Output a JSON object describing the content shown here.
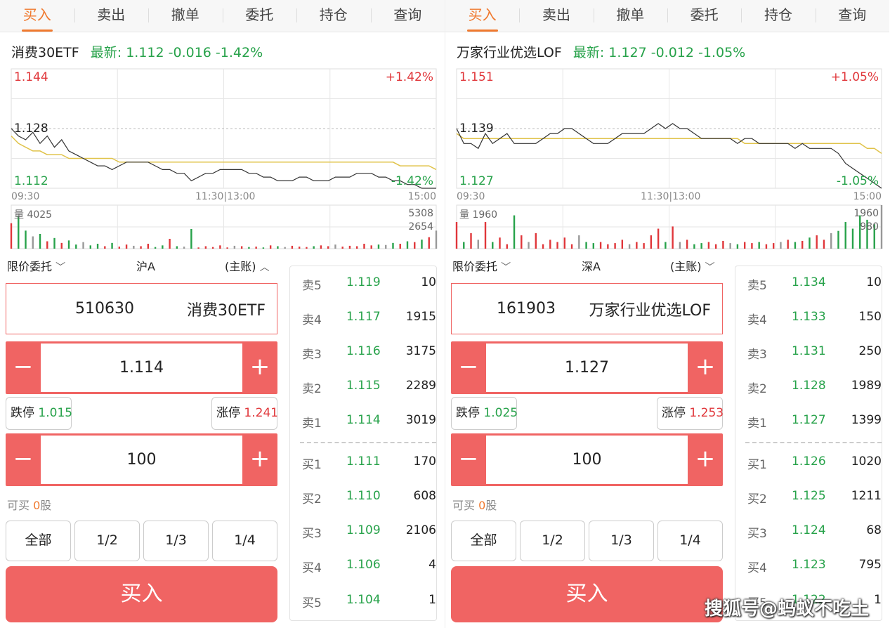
{
  "tabs": [
    "买入",
    "卖出",
    "撤单",
    "委托",
    "持仓",
    "查询"
  ],
  "panels": [
    {
      "name": "消费30ETF",
      "latest": "最新: 1.112 -0.016 -1.42%",
      "chart": {
        "high": "1.144",
        "mid": "1.128",
        "low": "1.112",
        "pct_up": "+1.42%",
        "pct_down": "-1.42%",
        "time_start": "09:30",
        "time_mid": "11:30|13:00",
        "time_end": "15:00",
        "vol_label": "量 4025",
        "vol_max": "5308",
        "vol_half": "2654",
        "price_line": [
          1.128,
          1.126,
          1.125,
          1.127,
          1.124,
          1.126,
          1.123,
          1.125,
          1.122,
          1.121,
          1.12,
          1.119,
          1.118,
          1.118,
          1.117,
          1.118,
          1.119,
          1.119,
          1.119,
          1.119,
          1.118,
          1.117,
          1.117,
          1.116,
          1.116,
          1.114,
          1.115,
          1.116,
          1.116,
          1.117,
          1.117,
          1.117,
          1.117,
          1.116,
          1.116,
          1.115,
          1.115,
          1.114,
          1.114,
          1.114,
          1.115,
          1.115,
          1.114,
          1.114,
          1.114,
          1.115,
          1.115,
          1.115,
          1.116,
          1.116,
          1.116,
          1.115,
          1.115,
          1.114,
          1.114,
          1.113,
          1.113,
          1.112,
          1.112,
          1.112
        ],
        "avg_line": [
          1.126,
          1.124,
          1.123,
          1.122,
          1.122,
          1.121,
          1.121,
          1.121,
          1.12,
          1.12,
          1.12,
          1.12,
          1.12,
          1.12,
          1.12,
          1.119,
          1.119,
          1.119,
          1.119,
          1.119,
          1.119,
          1.119,
          1.119,
          1.119,
          1.119,
          1.119,
          1.119,
          1.119,
          1.119,
          1.119,
          1.119,
          1.119,
          1.119,
          1.119,
          1.119,
          1.119,
          1.119,
          1.119,
          1.119,
          1.119,
          1.119,
          1.119,
          1.119,
          1.119,
          1.119,
          1.119,
          1.119,
          1.119,
          1.119,
          1.119,
          1.119,
          1.119,
          1.119,
          1.119,
          1.118,
          1.118,
          1.118,
          1.118,
          1.118,
          1.117
        ],
        "volume": [
          3100,
          4025,
          2200,
          1500,
          1800,
          900,
          1300,
          700,
          1000,
          500,
          800,
          400,
          600,
          300,
          700,
          250,
          500,
          350,
          300,
          600,
          200,
          400,
          1200,
          300,
          250,
          2400,
          150,
          300,
          200,
          400,
          150,
          350,
          300,
          200,
          250,
          150,
          400,
          300,
          200,
          350,
          250,
          200,
          300,
          400,
          300,
          500,
          250,
          350,
          300,
          600,
          400,
          500,
          450,
          700,
          600,
          900,
          800,
          1100,
          1400,
          2200
        ]
      },
      "order_type": "限价委托",
      "market": "沪A",
      "account": "(主账)",
      "code": "510630",
      "stock_name": "消费30ETF",
      "price": "1.114",
      "limit_down_label": "跌停",
      "limit_down": "1.015",
      "limit_up_label": "涨停",
      "limit_up": "1.241",
      "qty": "100",
      "can_buy_label": "可买",
      "can_buy_num": "0",
      "can_buy_unit": "股",
      "ratios": [
        "全部",
        "1/2",
        "1/3",
        "1/4"
      ],
      "buy_label": "买入",
      "asks": [
        {
          "label": "卖5",
          "price": "1.119",
          "vol": "10"
        },
        {
          "label": "卖4",
          "price": "1.117",
          "vol": "1915"
        },
        {
          "label": "卖3",
          "price": "1.116",
          "vol": "3175"
        },
        {
          "label": "卖2",
          "price": "1.115",
          "vol": "2289"
        },
        {
          "label": "卖1",
          "price": "1.114",
          "vol": "3019"
        }
      ],
      "bids": [
        {
          "label": "买1",
          "price": "1.111",
          "vol": "170"
        },
        {
          "label": "买2",
          "price": "1.110",
          "vol": "608"
        },
        {
          "label": "买3",
          "price": "1.109",
          "vol": "2106"
        },
        {
          "label": "买4",
          "price": "1.106",
          "vol": "4"
        },
        {
          "label": "买5",
          "price": "1.104",
          "vol": "1"
        }
      ]
    },
    {
      "name": "万家行业优选LOF",
      "latest": "最新: 1.127 -0.012 -1.05%",
      "chart": {
        "high": "1.151",
        "mid": "1.139",
        "low": "1.127",
        "pct_up": "+1.05%",
        "pct_down": "-1.05%",
        "time_start": "09:30",
        "time_mid": "11:30|13:00",
        "time_end": "15:00",
        "vol_label": "量 1960",
        "vol_max": "1960",
        "vol_half": "980",
        "price_line": [
          1.139,
          1.136,
          1.136,
          1.135,
          1.138,
          1.136,
          1.137,
          1.138,
          1.136,
          1.136,
          1.136,
          1.136,
          1.137,
          1.138,
          1.138,
          1.139,
          1.139,
          1.138,
          1.137,
          1.136,
          1.136,
          1.136,
          1.137,
          1.138,
          1.138,
          1.138,
          1.138,
          1.139,
          1.14,
          1.139,
          1.14,
          1.139,
          1.139,
          1.138,
          1.137,
          1.137,
          1.137,
          1.137,
          1.137,
          1.136,
          1.137,
          1.137,
          1.136,
          1.136,
          1.136,
          1.136,
          1.136,
          1.135,
          1.136,
          1.135,
          1.135,
          1.135,
          1.135,
          1.134,
          1.132,
          1.131,
          1.13,
          1.129,
          1.128,
          1.127
        ],
        "avg_line": [
          1.138,
          1.137,
          1.137,
          1.137,
          1.137,
          1.137,
          1.137,
          1.137,
          1.137,
          1.137,
          1.137,
          1.137,
          1.137,
          1.137,
          1.137,
          1.137,
          1.137,
          1.137,
          1.137,
          1.137,
          1.137,
          1.137,
          1.137,
          1.137,
          1.137,
          1.137,
          1.137,
          1.137,
          1.137,
          1.137,
          1.137,
          1.137,
          1.137,
          1.137,
          1.137,
          1.137,
          1.137,
          1.137,
          1.137,
          1.137,
          1.136,
          1.136,
          1.136,
          1.136,
          1.136,
          1.136,
          1.136,
          1.136,
          1.136,
          1.136,
          1.136,
          1.136,
          1.136,
          1.136,
          1.136,
          1.136,
          1.136,
          1.135,
          1.135,
          1.134
        ],
        "volume": [
          1200,
          300,
          700,
          400,
          1200,
          300,
          500,
          200,
          1500,
          600,
          300,
          700,
          200,
          400,
          300,
          500,
          200,
          600,
          300,
          250,
          300,
          200,
          250,
          400,
          200,
          300,
          250,
          600,
          900,
          300,
          1000,
          300,
          400,
          200,
          250,
          300,
          200,
          350,
          250,
          200,
          300,
          250,
          300,
          200,
          250,
          300,
          400,
          300,
          350,
          500,
          600,
          400,
          700,
          800,
          1200,
          900,
          1500,
          1300,
          1100,
          1960
        ]
      },
      "order_type": "限价委托",
      "market": "深A",
      "account": "(主账)",
      "code": "161903",
      "stock_name": "万家行业优选LOF",
      "price": "1.127",
      "limit_down_label": "跌停",
      "limit_down": "1.025",
      "limit_up_label": "涨停",
      "limit_up": "1.253",
      "qty": "100",
      "can_buy_label": "可买",
      "can_buy_num": "0",
      "can_buy_unit": "股",
      "ratios": [
        "全部",
        "1/2",
        "1/3",
        "1/4"
      ],
      "buy_label": "买入",
      "asks": [
        {
          "label": "卖5",
          "price": "1.134",
          "vol": "10"
        },
        {
          "label": "卖4",
          "price": "1.133",
          "vol": "150"
        },
        {
          "label": "卖3",
          "price": "1.131",
          "vol": "250"
        },
        {
          "label": "卖2",
          "price": "1.128",
          "vol": "1989"
        },
        {
          "label": "卖1",
          "price": "1.127",
          "vol": "1399"
        }
      ],
      "bids": [
        {
          "label": "买1",
          "price": "1.126",
          "vol": "1020"
        },
        {
          "label": "买2",
          "price": "1.125",
          "vol": "1211"
        },
        {
          "label": "买3",
          "price": "1.124",
          "vol": "68"
        },
        {
          "label": "买4",
          "price": "1.123",
          "vol": "795"
        },
        {
          "label": "买5",
          "price": "1.122",
          "vol": "1"
        }
      ]
    }
  ],
  "watermark": "搜狐号@蚂蚁不吃土",
  "colors": {
    "accent": "#f0792e",
    "buy": "#f06463",
    "up": "#e0363a",
    "down": "#27a24a"
  }
}
